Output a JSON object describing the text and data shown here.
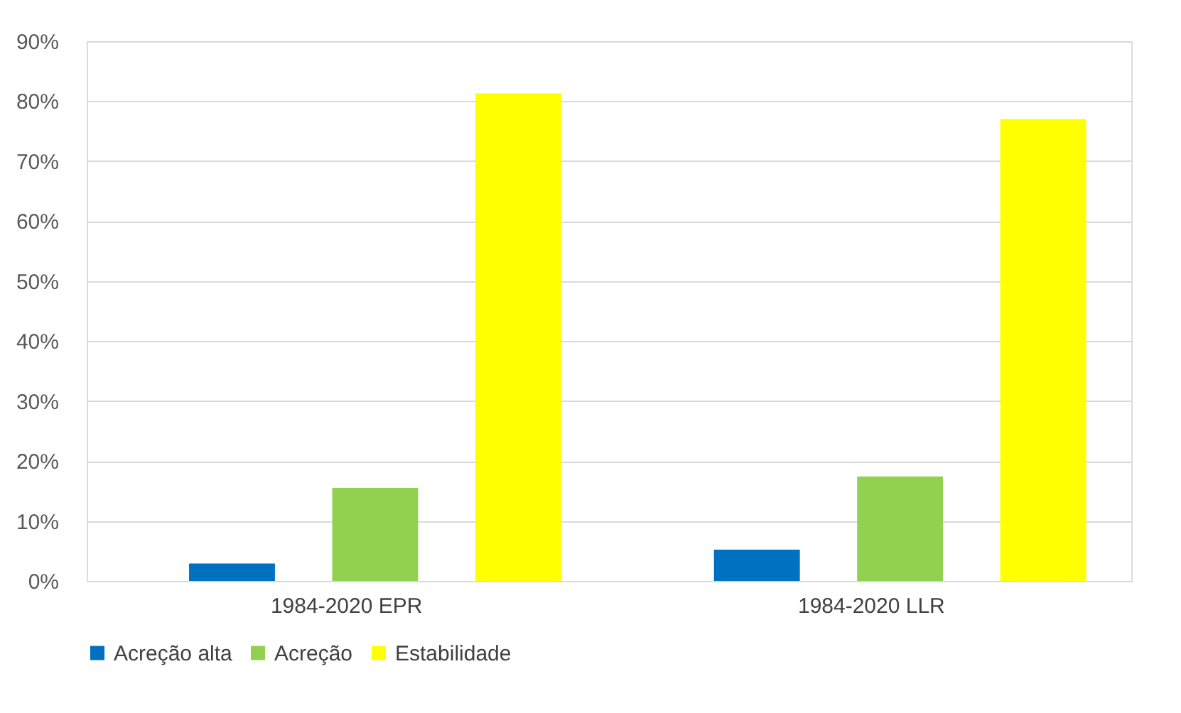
{
  "chart_data": {
    "type": "bar",
    "categories": [
      "1984-2020 EPR",
      "1984-2020 LLR"
    ],
    "series": [
      {
        "name": "Acreção alta",
        "color": "#0070c0",
        "values": [
          2.9,
          5.2
        ]
      },
      {
        "name": "Acreção",
        "color": "#92d050",
        "values": [
          15.5,
          17.4
        ]
      },
      {
        "name": "Estabilidade",
        "color": "#ffff00",
        "values": [
          81.3,
          77
        ]
      }
    ],
    "ylim": [
      0,
      90
    ],
    "yticks": [
      {
        "value": 0,
        "label": "0%"
      },
      {
        "value": 10,
        "label": "10%"
      },
      {
        "value": 20,
        "label": "20%"
      },
      {
        "value": 30,
        "label": "30%"
      },
      {
        "value": 40,
        "label": "40%"
      },
      {
        "value": 50,
        "label": "50%"
      },
      {
        "value": 60,
        "label": "60%"
      },
      {
        "value": 70,
        "label": "70%"
      },
      {
        "value": 80,
        "label": "80%"
      },
      {
        "value": 90,
        "label": "90%"
      }
    ],
    "grid": "y",
    "legend": "bottom"
  }
}
